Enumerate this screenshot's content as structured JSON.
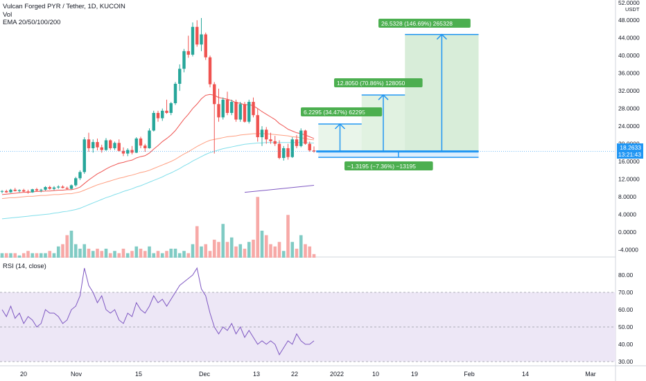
{
  "legend": {
    "symbol": "Vulcan Forged PYR / Tether, 1D, KUCOIN",
    "vol": "Vol",
    "ema": "EMA 20/50/100/200"
  },
  "rsi_label": "RSI (14, close)",
  "price_badge": {
    "price": "18.2633",
    "countdown": "13:21:43"
  },
  "currency": "USDT",
  "colors": {
    "up": "#26a69a",
    "down": "#ef5350",
    "vol_up": "#80cbc4",
    "vol_down": "#f7a9a7",
    "ema20": "#ef5350",
    "ema50": "#ff9e80",
    "ema100": "#80deea",
    "ema200": "#7e57c2",
    "target": "#2196f3",
    "target_fill": "#4caf50",
    "rsi_line": "#7e57c2",
    "rsi_band": "#ede7f6"
  },
  "chart_data": {
    "type": "candlestick",
    "price_axis": {
      "min": -6.0,
      "max": 52.0,
      "ticks": [
        "52.0000",
        "48.0000",
        "44.0000",
        "40.0000",
        "36.0000",
        "32.0000",
        "28.0000",
        "24.0000",
        "20.0000",
        "16.0000",
        "12.0000",
        "8.0000",
        "4.0000",
        "0.0000",
        "-4.0000"
      ]
    },
    "x_ticks": [
      "20",
      "Nov",
      "15",
      "Dec",
      "13",
      "22",
      "2022",
      "10",
      "19",
      "Feb",
      "14",
      "Mar"
    ],
    "rsi_axis": {
      "min": 25,
      "max": 90,
      "ticks": [
        "80.00",
        "70.00",
        "60.00",
        "50.00",
        "40.00",
        "30.00"
      ],
      "upper": 70,
      "lower": 30
    },
    "candles": [
      [
        9.2,
        9.5,
        8.8,
        9.3
      ],
      [
        9.3,
        9.6,
        8.9,
        9.0
      ],
      [
        9.0,
        9.8,
        8.9,
        9.6
      ],
      [
        9.6,
        10.0,
        9.2,
        9.3
      ],
      [
        9.3,
        9.7,
        9.0,
        9.5
      ],
      [
        9.5,
        9.8,
        9.1,
        9.2
      ],
      [
        9.2,
        9.6,
        8.7,
        9.0
      ],
      [
        9.0,
        9.8,
        8.9,
        9.7
      ],
      [
        9.7,
        10.0,
        9.2,
        9.4
      ],
      [
        9.4,
        9.8,
        9.0,
        9.6
      ],
      [
        9.6,
        10.4,
        9.4,
        10.2
      ],
      [
        10.2,
        10.5,
        9.6,
        9.8
      ],
      [
        9.8,
        10.4,
        9.5,
        10.1
      ],
      [
        10.1,
        10.6,
        9.8,
        10.3
      ],
      [
        10.3,
        10.6,
        9.9,
        10.0
      ],
      [
        10.0,
        10.3,
        9.6,
        9.8
      ],
      [
        9.8,
        10.8,
        9.7,
        10.6
      ],
      [
        10.6,
        12.5,
        10.3,
        12.2
      ],
      [
        12.2,
        14.0,
        11.8,
        13.6
      ],
      [
        13.6,
        21.5,
        13.2,
        21.0
      ],
      [
        21.0,
        22.5,
        18.2,
        19.0
      ],
      [
        19.0,
        21.0,
        18.0,
        20.4
      ],
      [
        20.4,
        21.2,
        18.5,
        19.2
      ],
      [
        19.2,
        19.8,
        18.0,
        18.6
      ],
      [
        18.6,
        21.3,
        18.4,
        20.8
      ],
      [
        20.8,
        21.0,
        18.6,
        19.0
      ],
      [
        19.0,
        20.5,
        18.6,
        20.2
      ],
      [
        20.2,
        21.0,
        18.2,
        18.4
      ],
      [
        18.4,
        19.2,
        17.2,
        17.8
      ],
      [
        17.8,
        19.0,
        17.2,
        18.6
      ],
      [
        18.6,
        19.5,
        17.6,
        18.0
      ],
      [
        18.0,
        21.5,
        17.9,
        21.2
      ],
      [
        21.2,
        21.6,
        19.0,
        19.6
      ],
      [
        19.6,
        20.0,
        18.2,
        19.0
      ],
      [
        19.0,
        23.5,
        18.9,
        23.0
      ],
      [
        23.0,
        27.5,
        22.8,
        27.0
      ],
      [
        27.0,
        27.5,
        25.0,
        25.8
      ],
      [
        25.8,
        28.0,
        25.2,
        27.5
      ],
      [
        27.5,
        30.0,
        26.8,
        27.0
      ],
      [
        27.0,
        29.5,
        26.5,
        29.2
      ],
      [
        29.2,
        34.0,
        28.8,
        33.6
      ],
      [
        33.6,
        38.0,
        32.0,
        37.0
      ],
      [
        37.0,
        41.5,
        36.2,
        41.0
      ],
      [
        41.0,
        44.5,
        39.5,
        40.2
      ],
      [
        40.2,
        47.5,
        39.8,
        46.5
      ],
      [
        46.5,
        48.0,
        42.0,
        42.5
      ],
      [
        42.5,
        48.5,
        41.0,
        44.8
      ],
      [
        44.8,
        45.2,
        39.0,
        39.6
      ],
      [
        39.6,
        40.0,
        32.8,
        33.5
      ],
      [
        33.5,
        34.0,
        17.8,
        29.0
      ],
      [
        29.0,
        32.5,
        25.0,
        26.0
      ],
      [
        26.0,
        30.5,
        25.5,
        30.0
      ],
      [
        30.0,
        31.8,
        26.5,
        27.0
      ],
      [
        27.0,
        30.0,
        26.5,
        29.5
      ],
      [
        29.5,
        30.0,
        25.0,
        25.5
      ],
      [
        25.5,
        29.5,
        25.0,
        29.0
      ],
      [
        29.0,
        29.5,
        24.8,
        25.0
      ],
      [
        25.0,
        30.0,
        24.6,
        29.5
      ],
      [
        29.5,
        30.5,
        26.0,
        26.5
      ],
      [
        26.5,
        28.0,
        20.5,
        21.5
      ],
      [
        21.5,
        24.0,
        19.5,
        23.2
      ],
      [
        23.2,
        23.8,
        20.0,
        21.0
      ],
      [
        21.0,
        22.5,
        20.0,
        20.6
      ],
      [
        20.6,
        21.8,
        19.5,
        20.0
      ],
      [
        20.0,
        20.8,
        16.5,
        16.8
      ],
      [
        16.8,
        19.5,
        16.2,
        19.0
      ],
      [
        19.0,
        20.0,
        16.4,
        17.0
      ],
      [
        17.0,
        21.5,
        16.8,
        21.0
      ],
      [
        21.0,
        22.0,
        19.0,
        19.5
      ],
      [
        19.5,
        23.5,
        19.2,
        23.0
      ],
      [
        23.0,
        23.2,
        19.8,
        20.0
      ],
      [
        20.0,
        20.5,
        18.2,
        18.5
      ],
      [
        18.5,
        19.4,
        18.0,
        18.26
      ]
    ],
    "volume": [
      1,
      1,
      1,
      1,
      0.5,
      1,
      1.5,
      1,
      1,
      1,
      1,
      1.5,
      1,
      2.5,
      3,
      5,
      6,
      3,
      2,
      3,
      2,
      1.5,
      2,
      1.5,
      2,
      1,
      1.5,
      1,
      2,
      1,
      1.5,
      2.5,
      2,
      1.5,
      2.5,
      1,
      1.5,
      1,
      1.5,
      2,
      2,
      1,
      1.5,
      1,
      3,
      7,
      2.5,
      3,
      1.5,
      4,
      3.5,
      7.5,
      3.5,
      4.5,
      2.5,
      3,
      2,
      3.5,
      4,
      13.5,
      6,
      5,
      3,
      2.5,
      3.5,
      1.5,
      9.5,
      3.5,
      2,
      5,
      3,
      2.5,
      0.8
    ],
    "ema20": [
      8.5,
      8.6,
      8.7,
      8.8,
      8.9,
      9.0,
      9.0,
      9.1,
      9.2,
      9.2,
      9.3,
      9.3,
      9.4,
      9.5,
      9.5,
      9.6,
      9.6,
      9.8,
      10.2,
      11.0,
      11.8,
      12.5,
      13.2,
      13.7,
      14.3,
      14.8,
      15.2,
      15.6,
      15.8,
      16.1,
      16.3,
      16.8,
      17.1,
      17.3,
      17.9,
      18.8,
      19.6,
      20.5,
      21.2,
      22.0,
      23.0,
      24.3,
      25.6,
      26.7,
      28.0,
      29.0,
      30.2,
      31.0,
      31.2,
      31.0,
      30.5,
      30.3,
      30.1,
      29.8,
      29.3,
      29.2,
      28.8,
      28.9,
      28.6,
      28.0,
      27.3,
      26.7,
      26.1,
      25.5,
      24.6,
      24.0,
      23.3,
      22.9,
      22.5,
      22.3,
      22.0,
      21.6,
      21.2
    ],
    "ema50": [
      7.6,
      7.7,
      7.8,
      7.8,
      7.9,
      8.0,
      8.1,
      8.1,
      8.2,
      8.3,
      8.3,
      8.4,
      8.5,
      8.5,
      8.6,
      8.7,
      8.7,
      8.9,
      9.1,
      9.5,
      9.9,
      10.3,
      10.7,
      11.0,
      11.3,
      11.6,
      11.9,
      12.2,
      12.4,
      12.7,
      12.9,
      13.2,
      13.5,
      13.7,
      14.0,
      14.4,
      14.8,
      15.2,
      15.6,
      16.0,
      16.5,
      17.1,
      17.7,
      18.2,
      18.8,
      19.4,
      19.9,
      20.4,
      20.8,
      21.0,
      21.2,
      21.4,
      21.6,
      21.7,
      21.8,
      22.0,
      22.1,
      22.2,
      22.3,
      22.3,
      22.3,
      22.3,
      22.2,
      22.1,
      22.0,
      21.9,
      21.8,
      21.6,
      21.5,
      21.4,
      21.2,
      21.0,
      20.9
    ],
    "ema100": [
      3.0,
      3.1,
      3.2,
      3.3,
      3.4,
      3.5,
      3.6,
      3.7,
      3.8,
      3.9,
      4.0,
      4.1,
      4.3,
      4.4,
      4.6,
      4.7,
      4.9,
      5.1,
      5.4,
      5.8,
      6.2,
      6.6,
      7.0,
      7.4,
      7.8,
      8.1,
      8.5,
      8.8,
      9.2,
      9.5,
      9.8,
      10.2,
      10.5,
      10.9,
      11.3,
      11.7,
      12.1,
      12.5,
      13.0,
      13.4,
      13.9,
      14.4,
      15.0,
      15.5,
      16.1,
      16.6,
      17.1,
      17.6,
      18.0,
      18.3,
      18.6,
      18.9,
      19.1,
      19.3,
      19.5,
      19.7,
      19.9,
      20.0,
      20.1,
      20.2,
      20.2,
      20.3,
      20.3,
      20.3,
      20.3,
      20.3,
      20.3,
      20.3,
      20.3,
      20.3,
      20.3,
      20.2,
      20.2
    ],
    "ema200_segment": {
      "x_from": 56,
      "x_to": 72,
      "y_from": 9.0,
      "y_to": 10.6
    },
    "rsi": [
      60,
      56,
      62,
      55,
      58,
      52,
      56,
      54,
      50,
      52,
      60,
      58,
      58,
      56,
      52,
      54,
      60,
      62,
      68,
      84,
      74,
      70,
      64,
      68,
      60,
      58,
      60,
      54,
      52,
      58,
      56,
      64,
      60,
      58,
      62,
      68,
      64,
      66,
      62,
      66,
      70,
      74,
      76,
      78,
      80,
      84,
      72,
      68,
      58,
      50,
      46,
      50,
      48,
      52,
      46,
      50,
      44,
      48,
      44,
      40,
      42,
      40,
      42,
      40,
      34,
      38,
      42,
      40,
      46,
      42,
      40,
      40,
      42
    ],
    "projections": [
      {
        "label": "6.2295 (34.47%) 62295",
        "from": 18.26,
        "to": 24.49,
        "x_from": 73,
        "x_to": 83
      },
      {
        "label": "12.8050 (70.86%) 128050",
        "from": 18.26,
        "to": 31.07,
        "x_from": 83,
        "x_to": 93
      },
      {
        "label": "26.5328 (146.69%) 265328",
        "from": 18.26,
        "to": 44.79,
        "x_from": 93,
        "x_to": 110
      },
      {
        "label": "−1.3195 (−7.36%) −13195",
        "from": 18.26,
        "to": 16.94,
        "x_from": 73,
        "x_to": 110
      }
    ]
  }
}
